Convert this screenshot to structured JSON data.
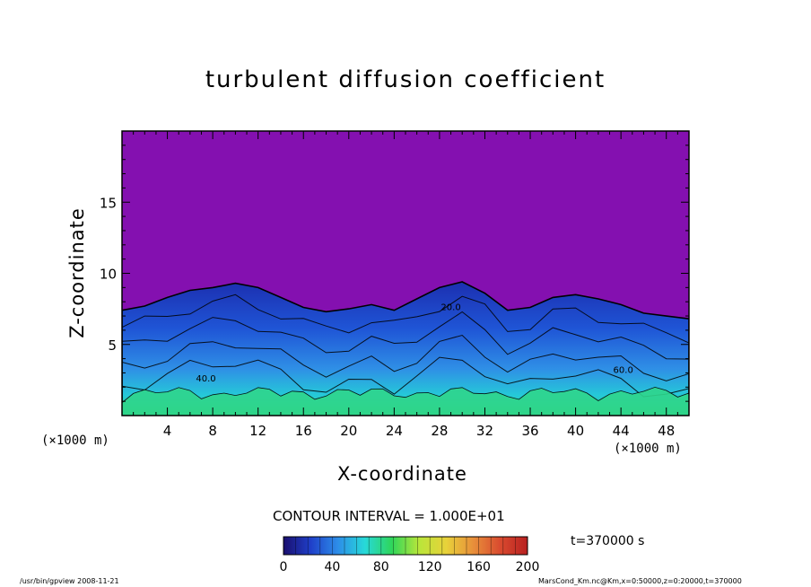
{
  "chart_data": {
    "type": "heatmap",
    "title": "turbulent diffusion coefficient",
    "xlabel": "X-coordinate",
    "ylabel": "Z-coordinate",
    "x_unit": "(×1000 m)",
    "z_unit": "(×1000 m)",
    "xlim": [
      0,
      50
    ],
    "ylim": [
      0,
      20
    ],
    "x_ticks": [
      4,
      8,
      12,
      16,
      20,
      24,
      28,
      32,
      36,
      40,
      44,
      48
    ],
    "y_ticks": [
      5,
      10,
      15
    ],
    "contour_interval_label": "CONTOUR INTERVAL = 1.000E+01",
    "contour_interval": 10,
    "time_label": "t=370000 s",
    "colorbar": {
      "min": 0,
      "max": 200,
      "ticks": [
        0,
        40,
        80,
        120,
        160,
        200
      ],
      "stops": [
        "#1a0f6e",
        "#1f3fc9",
        "#2d8de8",
        "#27d9d9",
        "#2fd65a",
        "#b9e63a",
        "#e8d23a",
        "#e88f3a",
        "#d94a2f",
        "#b82020"
      ]
    },
    "background_color": "#8410b0",
    "contour_labels": [
      {
        "text": "60.0",
        "x": 44.2,
        "z": 3.0
      },
      {
        "text": "40.0",
        "x": 7.4,
        "z": 2.4
      },
      {
        "text": "20.0",
        "x": 29.0,
        "z": 7.4
      }
    ],
    "turbulent_layer_top_km": [
      [
        0,
        7.4
      ],
      [
        2,
        7.7
      ],
      [
        4,
        8.3
      ],
      [
        6,
        8.8
      ],
      [
        8,
        9.0
      ],
      [
        10,
        9.3
      ],
      [
        12,
        9.0
      ],
      [
        14,
        8.3
      ],
      [
        16,
        7.6
      ],
      [
        18,
        7.3
      ],
      [
        20,
        7.5
      ],
      [
        22,
        7.8
      ],
      [
        24,
        7.4
      ],
      [
        26,
        8.2
      ],
      [
        28,
        9.0
      ],
      [
        30,
        9.4
      ],
      [
        32,
        8.6
      ],
      [
        34,
        7.4
      ],
      [
        36,
        7.6
      ],
      [
        38,
        8.3
      ],
      [
        40,
        8.5
      ],
      [
        42,
        8.2
      ],
      [
        44,
        7.8
      ],
      [
        46,
        7.2
      ],
      [
        48,
        7.0
      ],
      [
        50,
        6.8
      ]
    ]
  },
  "footer": {
    "left": "/usr/bin/gpview   2008-11-21",
    "right": "MarsCond_Km.nc@Km,x=0:50000,z=0:20000,t=370000"
  }
}
